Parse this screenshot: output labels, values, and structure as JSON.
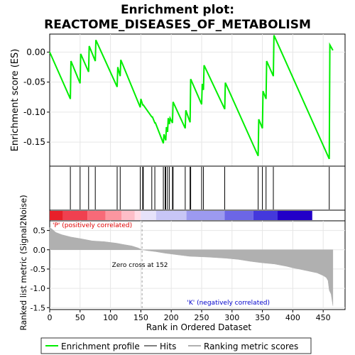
{
  "chart_data": {
    "type": "line",
    "title": "Enrichment plot:",
    "subtitle": "REACTOME_DISEASES_OF_METABOLISM",
    "top_panel": {
      "ylabel": "Enrichment score (ES)",
      "ylim": [
        -0.19,
        0.03
      ],
      "yticks": [
        0.0,
        -0.05,
        -0.1,
        -0.15
      ],
      "ytick_labels": [
        "0.00",
        "-0.05",
        "-0.10",
        "-0.15"
      ],
      "line_color": "#00ee00",
      "series": [
        {
          "name": "Enrichment profile",
          "x": [
            0,
            34,
            35,
            50,
            51,
            64,
            65,
            75,
            76,
            111,
            112,
            116,
            117,
            149,
            150,
            153,
            154,
            168,
            169,
            173,
            174,
            187,
            188,
            191,
            192,
            194,
            195,
            197,
            198,
            202,
            203,
            223,
            224,
            231,
            232,
            250,
            251,
            253,
            254,
            288,
            289,
            343,
            344,
            350,
            351,
            356,
            357,
            368,
            369,
            460,
            461,
            466
          ],
          "y": [
            0.0,
            -0.078,
            -0.015,
            -0.052,
            -0.003,
            -0.033,
            0.01,
            -0.015,
            0.02,
            -0.058,
            -0.025,
            -0.04,
            -0.013,
            -0.092,
            -0.078,
            -0.088,
            -0.088,
            -0.108,
            -0.108,
            -0.118,
            -0.118,
            -0.152,
            -0.137,
            -0.147,
            -0.125,
            -0.133,
            -0.11,
            -0.12,
            -0.11,
            -0.118,
            -0.083,
            -0.127,
            -0.097,
            -0.117,
            -0.045,
            -0.087,
            -0.053,
            -0.063,
            -0.022,
            -0.095,
            -0.051,
            -0.173,
            -0.112,
            -0.127,
            -0.065,
            -0.078,
            -0.015,
            -0.04,
            0.028,
            -0.178,
            0.012,
            0.003
          ]
        }
      ]
    },
    "hits": {
      "label": "Hits",
      "positions": [
        34,
        50,
        64,
        75,
        111,
        116,
        149,
        153,
        154,
        168,
        173,
        187,
        190,
        191,
        194,
        197,
        202,
        203,
        223,
        231,
        232,
        250,
        253,
        288,
        343,
        350,
        356,
        368,
        460
      ]
    },
    "rank_bar": {
      "colors": [
        "#e8202a",
        "#f04050",
        "#f86a78",
        "#fc96a0",
        "#fdbec8",
        "#ffdce6",
        "#e6e2fa",
        "#c8c6f6",
        "#9c9af0",
        "#6c66e6",
        "#4438dc",
        "#2200c8"
      ],
      "boundaries": [
        0,
        22,
        62,
        92,
        118,
        140,
        150,
        175,
        225,
        288,
        335,
        375,
        432,
        466
      ]
    },
    "bottom_panel": {
      "ylabel": "Ranked list metric (Signal2Noise)",
      "xlabel": "Rank in Ordered Dataset",
      "ylim": [
        -1.55,
        0.75
      ],
      "yticks": [
        0.5,
        0.0,
        -0.5,
        -1.0,
        -1.5
      ],
      "ytick_labels": [
        "0.5",
        "0.0",
        "-0.5",
        "-1.0",
        "-1.5"
      ],
      "xlim": [
        0,
        486
      ],
      "xticks": [
        0,
        50,
        100,
        150,
        200,
        250,
        300,
        350,
        400,
        450
      ],
      "xtick_labels": [
        "0",
        "50",
        "100",
        "150",
        "200",
        "250",
        "300",
        "350",
        "400",
        "450"
      ],
      "fill_color": "#b0b0b0",
      "metric_profile": {
        "x": [
          0,
          5,
          10,
          20,
          35,
          50,
          60,
          70,
          90,
          100,
          110,
          120,
          135,
          145,
          152,
          160,
          175,
          190,
          210,
          230,
          260,
          290,
          310,
          330,
          350,
          370,
          390,
          400,
          410,
          425,
          440,
          450,
          455,
          458,
          460,
          463,
          466
        ],
        "y": [
          0.58,
          0.52,
          0.45,
          0.39,
          0.33,
          0.29,
          0.26,
          0.23,
          0.21,
          0.19,
          0.17,
          0.14,
          0.1,
          0.05,
          0.0,
          -0.02,
          -0.05,
          -0.09,
          -0.13,
          -0.17,
          -0.19,
          -0.22,
          -0.25,
          -0.3,
          -0.34,
          -0.37,
          -0.43,
          -0.47,
          -0.5,
          -0.55,
          -0.6,
          -0.67,
          -0.72,
          -0.8,
          -1.05,
          -1.15,
          -1.45
        ]
      },
      "zero_cross_label": "Zero cross at 152",
      "zero_cross_x": 152,
      "pos_label": "'P' (positively correlated)",
      "neg_label": "'K' (negatively correlated)"
    },
    "legend": {
      "placement": "bottom",
      "items": [
        {
          "label": "Enrichment profile",
          "color": "#00ee00"
        },
        {
          "label": "Hits",
          "color": "#000000"
        },
        {
          "label": "Ranking metric scores",
          "color": "#b0b0b0"
        }
      ]
    }
  }
}
